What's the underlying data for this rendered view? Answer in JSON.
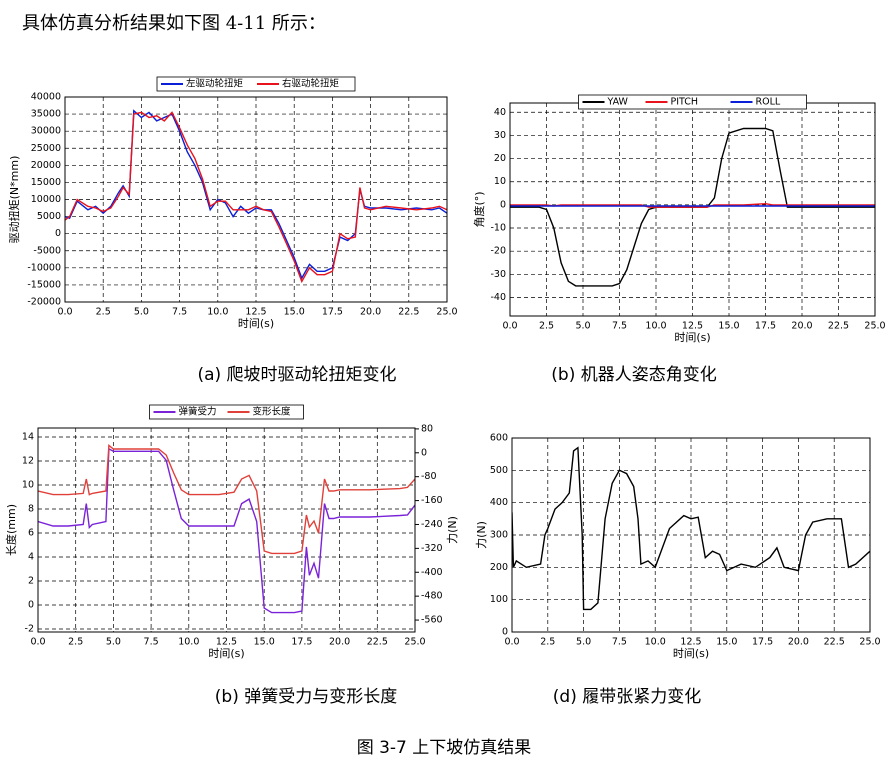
{
  "header": {
    "text": "具体仿真分析结果如下图 4-11 所示："
  },
  "captions": [
    "(a)  爬坡时驱动轮扭矩变化",
    "(b) 机器人姿态角变化",
    "(b)  弹簧受力与变形长度",
    "(d) 履带张紧力变化"
  ],
  "figure_caption": "图 3-7  上下坡仿真结果",
  "chart_data": [
    {
      "type": "line",
      "xlabel": "时间(s)",
      "ylabel": "驱动扭矩(N*mm)",
      "grid": true,
      "legend": "top",
      "xlim": [
        0,
        25
      ],
      "ylim": [
        -20000,
        40000
      ],
      "xticks": [
        {
          "value": 0,
          "label": "0.0"
        },
        2.5,
        {
          "value": 5,
          "label": "5.0"
        },
        7.5,
        {
          "value": 10,
          "label": "10.0"
        },
        12.5,
        {
          "value": 15,
          "label": "15.0"
        },
        17.5,
        {
          "value": 20,
          "label": "20.0"
        },
        22.5,
        {
          "value": 25,
          "label": "25.0"
        }
      ],
      "yticks": [
        -20000,
        -15000,
        -10000,
        -5000,
        0,
        5000,
        10000,
        15000,
        20000,
        25000,
        30000,
        35000,
        40000
      ],
      "x": [
        0,
        0.3,
        0.8,
        1.5,
        2,
        2.5,
        3,
        3.5,
        3.8,
        4.2,
        4.5,
        5,
        5.5,
        6,
        6.5,
        7,
        7.5,
        8,
        8.5,
        9,
        9.5,
        10,
        10.5,
        11,
        11.5,
        12,
        12.5,
        13,
        13.5,
        14,
        14.5,
        15,
        15.5,
        16,
        16.5,
        17,
        17.5,
        18,
        18.5,
        19,
        19.3,
        19.6,
        20,
        21,
        22,
        23,
        24,
        24.5,
        25
      ],
      "series": [
        {
          "name": "左驱动轮扭矩",
          "color": "#0a1fd8",
          "values": [
            5000,
            4500,
            9500,
            7000,
            8000,
            6000,
            8000,
            12000,
            14000,
            11000,
            36000,
            34000,
            35500,
            33000,
            34000,
            35000,
            30000,
            24000,
            20000,
            15000,
            7000,
            10000,
            9000,
            5000,
            8000,
            6000,
            7500,
            7000,
            7000,
            3000,
            -2000,
            -7000,
            -13000,
            -9000,
            -11000,
            -11000,
            -10000,
            -1000,
            -2000,
            0,
            13000,
            8000,
            7500,
            7500,
            7000,
            7500,
            7000,
            7500,
            6000
          ]
        },
        {
          "name": "右驱动轮扭矩",
          "color": "#e8121c",
          "values": [
            4000,
            5000,
            10000,
            8000,
            7500,
            6500,
            7500,
            11000,
            13500,
            11500,
            35000,
            35500,
            34000,
            34500,
            33000,
            35500,
            31000,
            26000,
            22000,
            16000,
            8000,
            9500,
            9500,
            7000,
            7000,
            7000,
            8000,
            7000,
            6500,
            2000,
            -3000,
            -8000,
            -14000,
            -10000,
            -12000,
            -12000,
            -11000,
            0,
            -1500,
            -1000,
            13500,
            7500,
            7000,
            8000,
            7500,
            7000,
            7500,
            8000,
            7000
          ]
        }
      ]
    },
    {
      "type": "line",
      "xlabel": "时间(s)",
      "ylabel": "角度(°)",
      "grid": true,
      "legend": "top",
      "xlim": [
        0,
        25
      ],
      "ylim": [
        -48,
        44
      ],
      "xticks": [
        {
          "value": 0,
          "label": "0.0"
        },
        2.5,
        {
          "value": 5,
          "label": "5.0"
        },
        7.5,
        {
          "value": 10,
          "label": "10.0"
        },
        12.5,
        {
          "value": 15,
          "label": "15.0"
        },
        17.5,
        {
          "value": 20,
          "label": "20.0"
        },
        22.5,
        {
          "value": 25,
          "label": "25.0"
        }
      ],
      "yticks": [
        -40,
        -30,
        -20,
        -10,
        0,
        10,
        20,
        30,
        40
      ],
      "x": [
        0,
        2,
        2.5,
        3,
        3.5,
        4,
        4.5,
        5,
        7,
        7.5,
        8,
        8.5,
        9,
        9.5,
        10,
        13,
        13.5,
        14,
        14.5,
        15,
        16,
        17.5,
        18,
        18.5,
        19,
        25
      ],
      "series": [
        {
          "name": "YAW",
          "color": "#000000",
          "values": [
            -1,
            -1,
            -2,
            -10,
            -25,
            -33,
            -35,
            -35,
            -35,
            -34,
            -28,
            -18,
            -8,
            -2,
            -1,
            -1,
            -1,
            3,
            20,
            31,
            33,
            33,
            32,
            15,
            -1,
            -1
          ]
        },
        {
          "name": "PITCH",
          "color": "#e8121c",
          "values": [
            0,
            0,
            0,
            -0.5,
            0,
            0,
            0,
            0,
            0,
            0,
            0,
            0,
            0,
            -1,
            -1,
            -1,
            -1,
            0,
            0,
            0,
            0,
            0.5,
            0,
            0,
            0,
            0
          ]
        },
        {
          "name": "ROLL",
          "color": "#0a1fd8",
          "values": [
            -0.5,
            -0.5,
            -0.5,
            -0.5,
            -0.5,
            -0.5,
            -0.5,
            -0.5,
            -0.5,
            -0.5,
            -0.5,
            -0.5,
            -0.5,
            -0.5,
            -0.5,
            -0.5,
            -0.5,
            -0.5,
            -0.5,
            -0.5,
            -0.5,
            -0.5,
            -0.5,
            -0.5,
            -0.5,
            -0.5
          ]
        }
      ]
    },
    {
      "type": "line",
      "xlabel": "时间(s)",
      "ylabel": "长度(mm)",
      "y2label": "力(N)",
      "grid": true,
      "legend": "top",
      "xlim": [
        0,
        25
      ],
      "ylim": [
        -2.25,
        14.75
      ],
      "y2lim": [
        -600,
        83
      ],
      "xticks": [
        {
          "value": 0,
          "label": "0.0"
        },
        2.5,
        {
          "value": 5,
          "label": "5.0"
        },
        7.5,
        {
          "value": 10,
          "label": "10.0"
        },
        12.5,
        {
          "value": 15,
          "label": "15.0"
        },
        17.5,
        {
          "value": 20,
          "label": "20.0"
        },
        22.5,
        {
          "value": 25,
          "label": "25.0"
        }
      ],
      "yticks": [
        -2,
        0,
        2,
        4,
        6,
        8,
        10,
        12,
        14
      ],
      "y2ticks": [
        80,
        0,
        -80,
        -160,
        -240,
        -320,
        -400,
        -480,
        -560
      ],
      "x": [
        0,
        1,
        2,
        3,
        3.2,
        3.4,
        3.6,
        4.5,
        4.7,
        5,
        7.5,
        8,
        8.5,
        9,
        9.5,
        10,
        12,
        13,
        13.5,
        14,
        14.5,
        15,
        15.5,
        17,
        17.5,
        17.8,
        18,
        18.3,
        18.6,
        19,
        19.3,
        19.6,
        20,
        22,
        24,
        24.5,
        25
      ],
      "series": [
        {
          "name": "弹簧受力",
          "color": "#7a22d8",
          "axis": "y2",
          "values": [
            -230,
            -245,
            -245,
            -240,
            -170,
            -250,
            -240,
            -230,
            13,
            5,
            5,
            5,
            -25,
            -125,
            -220,
            -245,
            -245,
            -245,
            -170,
            -155,
            -230,
            -520,
            -535,
            -535,
            -530,
            -315,
            -410,
            -370,
            -420,
            -170,
            -220,
            -220,
            -215,
            -215,
            -210,
            -208,
            -175
          ]
        },
        {
          "name": "变形长度",
          "color": "#e0403a",
          "values": [
            9.5,
            9.2,
            9.2,
            9.3,
            10.5,
            9.2,
            9.3,
            9.5,
            13.3,
            13,
            13,
            13,
            12.5,
            11,
            9.6,
            9.2,
            9.2,
            9.4,
            10.5,
            10.8,
            9.5,
            4.5,
            4.3,
            4.3,
            4.5,
            7.5,
            6.5,
            7,
            6,
            10.5,
            9.5,
            9.5,
            9.6,
            9.6,
            9.7,
            9.8,
            10.5
          ]
        }
      ]
    },
    {
      "type": "line",
      "xlabel": "时间(s)",
      "ylabel": "力(N)",
      "grid": true,
      "xlim": [
        0,
        25
      ],
      "ylim": [
        0,
        600
      ],
      "xticks": [
        {
          "value": 0,
          "label": "0.0"
        },
        2.5,
        {
          "value": 5,
          "label": "5.0"
        },
        7.5,
        {
          "value": 10,
          "label": "10.0"
        },
        12.5,
        {
          "value": 15,
          "label": "15.0"
        },
        17.5,
        {
          "value": 20,
          "label": "20.0"
        },
        22.5,
        {
          "value": 25,
          "label": "25.0"
        }
      ],
      "yticks": [
        0,
        100,
        200,
        300,
        400,
        500,
        600
      ],
      "x": [
        0,
        0.1,
        0.3,
        1,
        2,
        2.3,
        2.5,
        3,
        3.5,
        4,
        4.3,
        4.6,
        4.9,
        5,
        5.5,
        6,
        6.5,
        7,
        7.5,
        8,
        8.5,
        8.8,
        9,
        9.5,
        10,
        11,
        12,
        12.5,
        13,
        13.5,
        14,
        14.5,
        15,
        16,
        17,
        18,
        18.5,
        19,
        20,
        20.5,
        21,
        22,
        23,
        23.5,
        24,
        25
      ],
      "series": [
        {
          "color": "#000000",
          "values": [
            370,
            200,
            220,
            200,
            210,
            300,
            320,
            380,
            400,
            430,
            560,
            570,
            300,
            70,
            70,
            90,
            350,
            460,
            500,
            490,
            450,
            350,
            210,
            220,
            200,
            320,
            360,
            350,
            355,
            230,
            250,
            240,
            190,
            210,
            200,
            230,
            260,
            200,
            190,
            300,
            340,
            350,
            350,
            200,
            210,
            250
          ]
        }
      ]
    }
  ]
}
